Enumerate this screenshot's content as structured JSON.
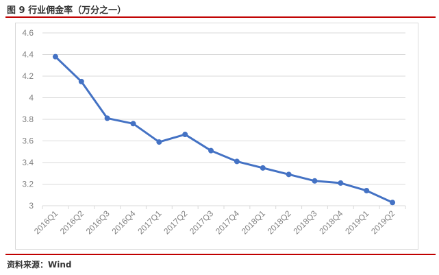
{
  "figure": {
    "title": "图 9  行业佣金率（万分之一）",
    "source": "资料来源：Wind"
  },
  "colors": {
    "rule": "#c00000",
    "line": "#4472c4",
    "grid": "#d9d9d9",
    "tick_text": "#808080"
  },
  "chart_data": {
    "type": "line",
    "title": "",
    "xlabel": "",
    "ylabel": "",
    "ylim": [
      3,
      4.6
    ],
    "yticks": [
      3,
      3.2,
      3.4,
      3.6,
      3.8,
      4,
      4.2,
      4.4,
      4.6
    ],
    "ytick_labels": [
      "3",
      "3.2",
      "3.4",
      "3.6",
      "3.8",
      "4",
      "4.2",
      "4.4",
      "4.6"
    ],
    "grid": true,
    "legend": "none",
    "categories": [
      "2016Q1",
      "2016Q2",
      "2016Q3",
      "2016Q4",
      "2017Q1",
      "2017Q2",
      "2017Q3",
      "2017Q4",
      "2018Q1",
      "2018Q2",
      "2018Q3",
      "2018Q4",
      "2019Q1",
      "2019Q2"
    ],
    "series": [
      {
        "values": [
          4.38,
          4.15,
          3.81,
          3.76,
          3.59,
          3.66,
          3.51,
          3.41,
          3.35,
          3.29,
          3.23,
          3.21,
          3.14,
          3.03
        ]
      }
    ]
  }
}
